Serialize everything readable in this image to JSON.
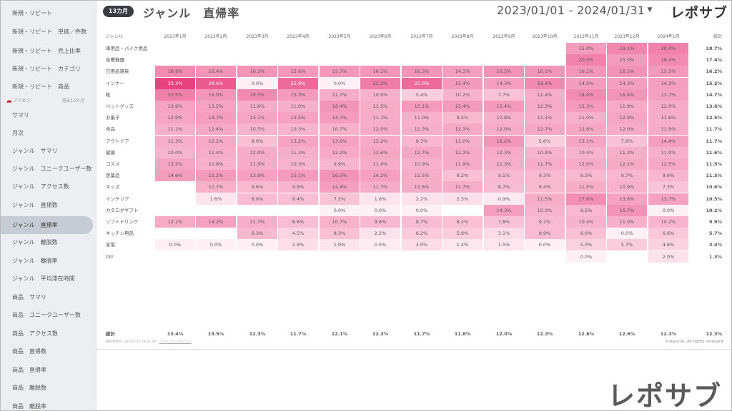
{
  "sidebar": {
    "items": [
      "新規・リピート",
      "新規・リピート　単価／件数",
      "新規・リピート　売上比率",
      "新規・リピート　カテゴリ",
      "新規・リピート　商品",
      "サマリ",
      "月次",
      "ジャンル　サマリ",
      "ジャンル　ユニークユーザー数",
      "ジャンル　アクセス数",
      "ジャンル　直帰数",
      "ジャンル　直帰率",
      "ジャンル　離脱数",
      "ジャンル　離脱率",
      "ジャンル　平均滞在時間",
      "商品　サマリ",
      "商品　ユニークユーザー数",
      "商品　アクセス数",
      "商品　直帰数",
      "商品　直帰率",
      "商品　離脱数",
      "商品　離脱率"
    ],
    "active_index": 11,
    "section_label": "アクセス",
    "section_right": "過去13カ月"
  },
  "header": {
    "badge": "13カ月",
    "title": "ジャンル　直帰率",
    "date_range": "2023/01/01 - 2024/01/31",
    "brand": "レポサブ"
  },
  "table": {
    "row_header": "ジャンル",
    "columns": [
      "2023年1月",
      "2023年2月",
      "2023年3月",
      "2023年4月",
      "2023年5月",
      "2023年6月",
      "2023年7月",
      "2023年8月",
      "2023年9月",
      "2023年10月",
      "2023年11月",
      "2023年12月",
      "2024年1月"
    ],
    "total_header": "総計",
    "rows": [
      {
        "label": "車用品・バイク用品",
        "values": [
          null,
          null,
          null,
          null,
          null,
          null,
          null,
          null,
          null,
          null,
          "15.0%",
          "19.1%",
          "20.4%"
        ],
        "total": "18.7%"
      },
      {
        "label": "音響機器",
        "values": [
          null,
          null,
          null,
          null,
          null,
          null,
          null,
          null,
          null,
          null,
          "20.0%",
          "15.0%",
          "18.4%"
        ],
        "total": "17.4%"
      },
      {
        "label": "日用品雑貨",
        "values": [
          "18.8%",
          "16.4%",
          "16.3%",
          "15.6%",
          "15.7%",
          "16.1%",
          "16.3%",
          "14.3%",
          "16.5%",
          "16.1%",
          "16.1%",
          "16.5%",
          "15.5%"
        ],
        "total": "16.2%"
      },
      {
        "label": "インナー",
        "values": [
          "33.3%",
          "28.6%",
          "0.0%",
          "25.0%",
          "0.0%",
          "21.2%",
          "25.0%",
          "15.4%",
          "14.3%",
          "18.4%",
          "14.5%",
          "14.3%",
          "14.3%"
        ],
        "total": "15.5%"
      },
      {
        "label": "靴",
        "values": [
          "20.5%",
          "16.0%",
          "18.5%",
          "15.3%",
          "11.7%",
          "10.9%",
          "5.4%",
          "10.2%",
          "7.7%",
          "11.4%",
          "18.0%",
          "16.4%",
          "13.7%"
        ],
        "total": "14.7%"
      },
      {
        "label": "ペットグッズ",
        "values": [
          "13.6%",
          "13.5%",
          "11.6%",
          "11.0%",
          "16.4%",
          "11.5%",
          "15.1%",
          "15.4%",
          "15.4%",
          "12.3%",
          "15.3%",
          "11.9%",
          "12.0%"
        ],
        "total": "13.6%"
      },
      {
        "label": "お菓子",
        "values": [
          "12.9%",
          "14.7%",
          "13.1%",
          "13.5%",
          "14.7%",
          "11.7%",
          "11.0%",
          "9.4%",
          "10.8%",
          "11.1%",
          "11.0%",
          "12.9%",
          "11.6%"
        ],
        "total": "12.5%"
      },
      {
        "label": "食品",
        "values": [
          "11.1%",
          "12.4%",
          "10.5%",
          "10.3%",
          "10.7%",
          "12.0%",
          "11.3%",
          "12.3%",
          "12.0%",
          "12.7%",
          "12.6%",
          "12.0%",
          "11.9%"
        ],
        "total": "11.7%"
      },
      {
        "label": "アウトドア",
        "values": [
          "11.3%",
          "12.2%",
          "8.0%",
          "13.2%",
          "13.6%",
          "12.2%",
          "9.7%",
          "11.0%",
          "16.2%",
          "5.6%",
          "13.1%",
          "7.8%",
          "14.4%"
        ],
        "total": "11.7%"
      },
      {
        "label": "健康",
        "values": [
          "10.0%",
          "11.4%",
          "12.0%",
          "11.3%",
          "12.2%",
          "12.6%",
          "12.7%",
          "12.2%",
          "12.3%",
          "10.4%",
          "10.4%",
          "11.2%",
          "11.0%"
        ],
        "total": "11.6%"
      },
      {
        "label": "コスメ",
        "values": [
          "13.2%",
          "10.8%",
          "11.9%",
          "10.3%",
          "9.9%",
          "11.4%",
          "10.9%",
          "11.9%",
          "11.3%",
          "11.7%",
          "12.0%",
          "12.1%",
          "12.5%"
        ],
        "total": "11.5%"
      },
      {
        "label": "医薬品",
        "values": [
          "14.6%",
          "15.2%",
          "13.9%",
          "15.1%",
          "16.5%",
          "14.2%",
          "11.5%",
          "8.2%",
          "9.1%",
          "9.3%",
          "9.3%",
          "9.7%",
          "9.9%"
        ],
        "total": "11.5%"
      },
      {
        "label": "キッズ",
        "values": [
          null,
          "10.7%",
          "9.6%",
          "9.9%",
          "14.4%",
          "11.7%",
          "11.6%",
          "11.7%",
          "8.7%",
          "9.4%",
          "11.5%",
          "10.9%",
          "7.3%"
        ],
        "total": "10.6%"
      },
      {
        "label": "インテリア",
        "values": [
          null,
          "1.6%",
          "8.9%",
          "8.4%",
          "7.5%",
          "1.6%",
          "2.2%",
          "2.5%",
          "0.9%",
          "11.5%",
          "17.6%",
          "13.6%",
          "13.7%"
        ],
        "total": "10.5%"
      },
      {
        "label": "カタログギフト",
        "values": [
          null,
          null,
          null,
          null,
          "0.0%",
          "0.0%",
          "0.0%",
          null,
          "14.3%",
          "10.0%",
          "9.5%",
          "16.7%",
          "0.0%"
        ],
        "total": "10.2%"
      },
      {
        "label": "ソフトドリンク",
        "values": [
          "12.1%",
          "14.2%",
          "11.7%",
          "8.6%",
          "10.7%",
          "9.8%",
          "8.7%",
          "8.2%",
          "7.8%",
          "9.1%",
          "10.4%",
          "11.0%",
          "10.2%"
        ],
        "total": "9.9%"
      },
      {
        "label": "キッチン用品",
        "values": [
          null,
          null,
          "9.3%",
          "4.5%",
          "8.3%",
          "2.2%",
          "6.2%",
          "5.9%",
          "3.1%",
          "8.9%",
          "8.0%",
          "0.0%",
          "6.6%"
        ],
        "total": "5.7%"
      },
      {
        "label": "家電",
        "values": [
          "0.0%",
          "0.0%",
          "0.0%",
          "2.9%",
          "1.9%",
          "0.5%",
          "3.0%",
          "1.4%",
          "1.5%",
          "0.0%",
          "5.0%",
          "5.7%",
          "4.8%"
        ],
        "total": "3.4%"
      },
      {
        "label": "DIY",
        "values": [
          null,
          null,
          null,
          null,
          null,
          null,
          null,
          null,
          null,
          null,
          "0.0%",
          null,
          "2.0%"
        ],
        "total": "1.3%"
      }
    ],
    "total_row": {
      "label": "総計",
      "values": [
        "13.4%",
        "13.5%",
        "12.3%",
        "11.7%",
        "12.1%",
        "12.3%",
        "11.7%",
        "11.8%",
        "12.0%",
        "12.3%",
        "12.6%",
        "12.6%",
        "12.3%"
      ],
      "total": "12.3%"
    }
  },
  "footer": {
    "updated": "最終更新日: 2024/2/13 16:41:40",
    "privacy": "プライバシーポリシー",
    "copyright": "©reposub. All rights reserved."
  },
  "watermark_brand": "レポサブ",
  "colors": {
    "heat_max": "#e8457f",
    "heat_min": "#fdeef3",
    "sidebar_bg": "#eceef1",
    "badge_bg": "#3a3d42"
  }
}
